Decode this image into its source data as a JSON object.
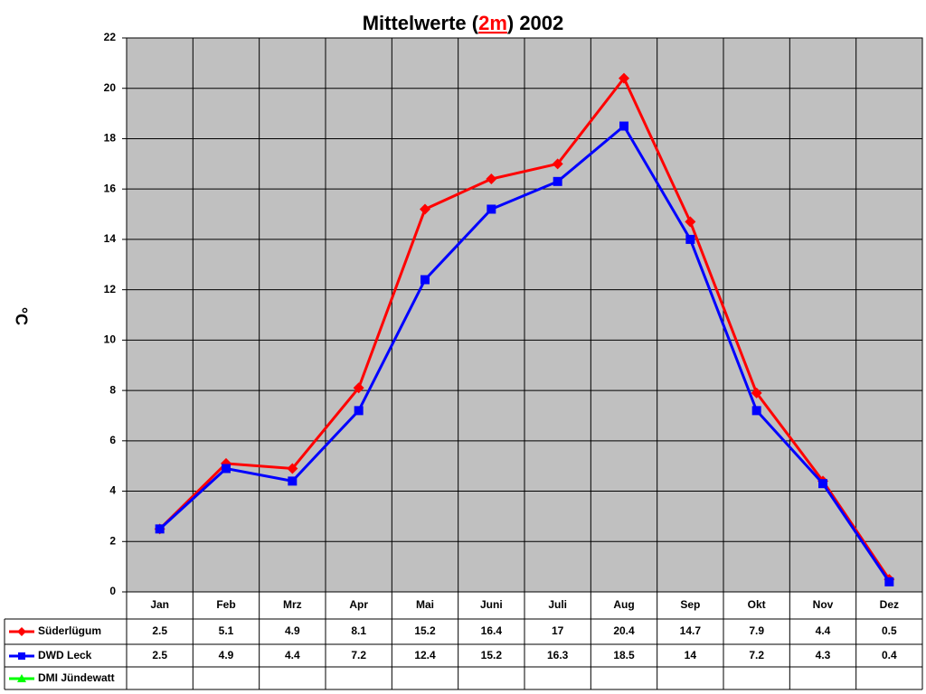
{
  "chart_data": {
    "type": "line",
    "title_parts": [
      "Mittelwerte (",
      "2m",
      ") 2002"
    ],
    "y_label": "°C",
    "categories": [
      "Jan",
      "Feb",
      "Mrz",
      "Apr",
      "Mai",
      "Juni",
      "Juli",
      "Aug",
      "Sep",
      "Okt",
      "Nov",
      "Dez"
    ],
    "series": [
      {
        "name": "Süderlügum",
        "color": "#ff0000",
        "marker": "diamond",
        "values": [
          2.5,
          5.1,
          4.9,
          8.1,
          15.2,
          16.4,
          17,
          20.4,
          14.7,
          7.9,
          4.4,
          0.5
        ]
      },
      {
        "name": "DWD Leck",
        "color": "#0000ff",
        "marker": "square",
        "values": [
          2.5,
          4.9,
          4.4,
          7.2,
          12.4,
          15.2,
          16.3,
          18.5,
          14,
          7.2,
          4.3,
          0.4
        ]
      },
      {
        "name": "DMI Jündewatt",
        "color": "#00ff00",
        "marker": "triangle",
        "values": [
          null,
          null,
          null,
          null,
          null,
          null,
          null,
          null,
          null,
          null,
          null,
          null
        ]
      }
    ],
    "ylim": [
      0,
      22
    ],
    "yticks": [
      0,
      2,
      4,
      6,
      8,
      10,
      12,
      14,
      16,
      18,
      20,
      22
    ],
    "grid": true,
    "plot_background": "#c0c0c0",
    "title_highlight_color": "#ff0000"
  }
}
